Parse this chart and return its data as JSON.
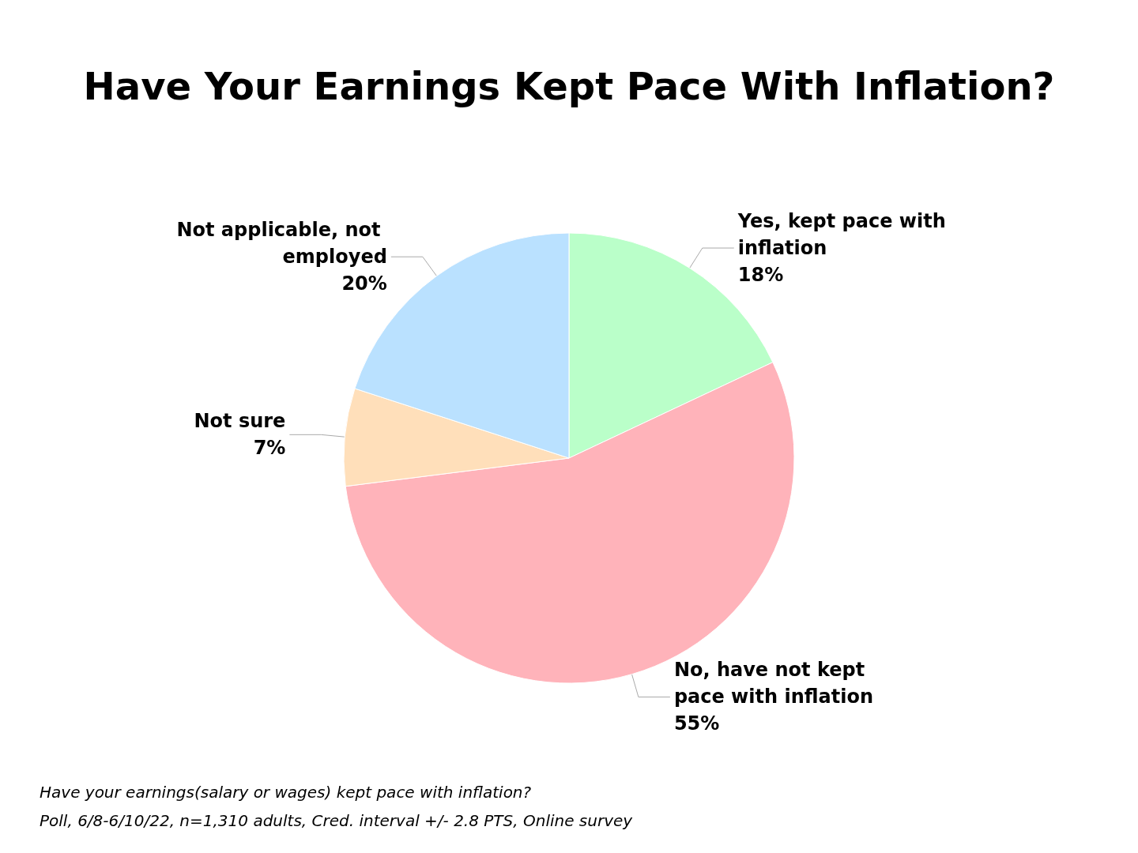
{
  "chart_data": {
    "type": "pie",
    "title": "Have Your Earnings Kept Pace With Inflation?",
    "categories": [
      "Yes, kept pace with inflation",
      "No, have not kept pace with inflation",
      "Not sure",
      "Not applicable, not employed"
    ],
    "values": [
      18,
      55,
      7,
      20
    ],
    "colors": [
      "#baffc9",
      "#ffb3ba",
      "#ffdfba",
      "#bae1ff"
    ],
    "value_labels": [
      "18%",
      "55%",
      "7%",
      "20%"
    ],
    "legend": false,
    "annotations": [
      "Have your earnings(salary or wages) kept pace with inflation?",
      "Poll, 6/8-6/10/22, n=1,310 adults, Cred. interval +/- 2.8 PTS, Online survey"
    ]
  }
}
